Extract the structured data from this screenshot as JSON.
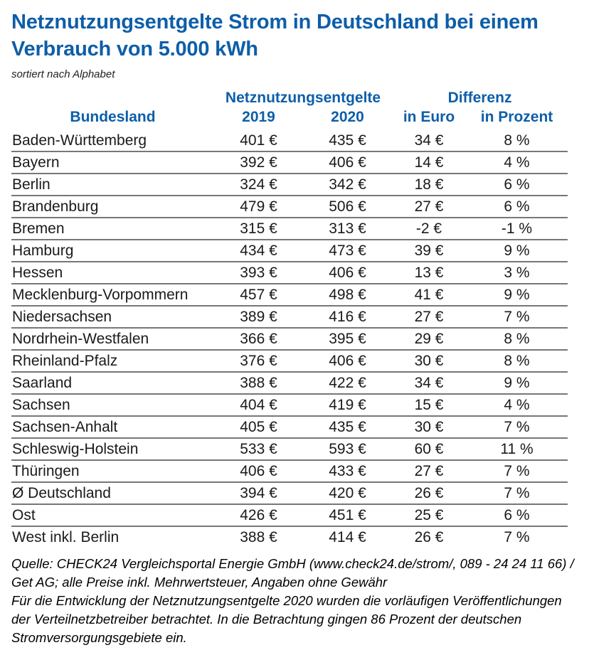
{
  "title": "Netznutzungsentgelte Strom in Deutschland bei einem Verbrauch von 5.000 kWh",
  "subtitle": "sortiert nach Alphabet",
  "accent_color": "#0d5ea9",
  "table": {
    "group_headers": {
      "fees": "Netznutzungsentgelte",
      "difference": "Differenz"
    },
    "columns": [
      "Bundesland",
      "2019",
      "2020",
      "in Euro",
      "in Prozent"
    ],
    "rows": [
      {
        "name": "Baden-Württemberg",
        "y2019": "401 €",
        "y2020": "435 €",
        "diff_euro": "34 €",
        "diff_pct": "8 %"
      },
      {
        "name": "Bayern",
        "y2019": "392 €",
        "y2020": "406 €",
        "diff_euro": "14 €",
        "diff_pct": "4 %"
      },
      {
        "name": "Berlin",
        "y2019": "324 €",
        "y2020": "342 €",
        "diff_euro": "18 €",
        "diff_pct": "6 %"
      },
      {
        "name": "Brandenburg",
        "y2019": "479 €",
        "y2020": "506 €",
        "diff_euro": "27 €",
        "diff_pct": "6 %"
      },
      {
        "name": "Bremen",
        "y2019": "315 €",
        "y2020": "313 €",
        "diff_euro": "-2 €",
        "diff_pct": "-1 %"
      },
      {
        "name": "Hamburg",
        "y2019": "434 €",
        "y2020": "473 €",
        "diff_euro": "39 €",
        "diff_pct": "9 %"
      },
      {
        "name": "Hessen",
        "y2019": "393 €",
        "y2020": "406 €",
        "diff_euro": "13 €",
        "diff_pct": "3 %"
      },
      {
        "name": "Mecklenburg-Vorpommern",
        "y2019": "457 €",
        "y2020": "498 €",
        "diff_euro": "41 €",
        "diff_pct": "9 %"
      },
      {
        "name": "Niedersachsen",
        "y2019": "389 €",
        "y2020": "416 €",
        "diff_euro": "27 €",
        "diff_pct": "7 %"
      },
      {
        "name": "Nordrhein-Westfalen",
        "y2019": "366 €",
        "y2020": "395 €",
        "diff_euro": "29 €",
        "diff_pct": "8 %"
      },
      {
        "name": "Rheinland-Pfalz",
        "y2019": "376 €",
        "y2020": "406 €",
        "diff_euro": "30 €",
        "diff_pct": "8 %"
      },
      {
        "name": "Saarland",
        "y2019": "388 €",
        "y2020": "422 €",
        "diff_euro": "34 €",
        "diff_pct": "9 %"
      },
      {
        "name": "Sachsen",
        "y2019": "404 €",
        "y2020": "419 €",
        "diff_euro": "15 €",
        "diff_pct": "4 %"
      },
      {
        "name": "Sachsen-Anhalt",
        "y2019": "405 €",
        "y2020": "435 €",
        "diff_euro": "30 €",
        "diff_pct": "7 %"
      },
      {
        "name": "Schleswig-Holstein",
        "y2019": "533 €",
        "y2020": "593 €",
        "diff_euro": "60 €",
        "diff_pct": "11 %"
      },
      {
        "name": "Thüringen",
        "y2019": "406 €",
        "y2020": "433 €",
        "diff_euro": "27 €",
        "diff_pct": "7 %"
      },
      {
        "name": "Ø Deutschland",
        "y2019": "394 €",
        "y2020": "420 €",
        "diff_euro": "26 €",
        "diff_pct": "7 %"
      },
      {
        "name": "Ost",
        "y2019": "426 €",
        "y2020": "451 €",
        "diff_euro": "25 €",
        "diff_pct": "6 %"
      },
      {
        "name": "West inkl. Berlin",
        "y2019": "388 €",
        "y2020": "414 €",
        "diff_euro": "26 €",
        "diff_pct": "7 %"
      }
    ]
  },
  "footer": {
    "source": "Quelle: CHECK24 Vergleichsportal Energie GmbH (www.check24.de/strom/, 089 - 24 24 11 66) / Get AG; alle Preise inkl. Mehrwertsteuer, Angaben ohne Gewähr",
    "note": "Für die Entwicklung der Netznutzungsentgelte 2020 wurden die vorläufigen Veröffentlichungen der Verteilnetzbetreiber betrachtet. In die Betrachtung gingen 86 Prozent der deutschen Stromversorgungsgebiete ein."
  },
  "chart_data": {
    "type": "table",
    "title": "Netznutzungsentgelte Strom in Deutschland bei einem Verbrauch von 5.000 kWh",
    "subtitle": "sortiert nach Alphabet",
    "columns": [
      "Bundesland",
      "Netznutzungsentgelte 2019 (Euro)",
      "Netznutzungsentgelte 2020 (Euro)",
      "Differenz in Euro",
      "Differenz in Prozent"
    ],
    "rows": [
      [
        "Baden-Württemberg",
        401,
        435,
        34,
        8
      ],
      [
        "Bayern",
        392,
        406,
        14,
        4
      ],
      [
        "Berlin",
        324,
        342,
        18,
        6
      ],
      [
        "Brandenburg",
        479,
        506,
        27,
        6
      ],
      [
        "Bremen",
        315,
        313,
        -2,
        -1
      ],
      [
        "Hamburg",
        434,
        473,
        39,
        9
      ],
      [
        "Hessen",
        393,
        406,
        13,
        3
      ],
      [
        "Mecklenburg-Vorpommern",
        457,
        498,
        41,
        9
      ],
      [
        "Niedersachsen",
        389,
        416,
        27,
        7
      ],
      [
        "Nordrhein-Westfalen",
        366,
        395,
        29,
        8
      ],
      [
        "Rheinland-Pfalz",
        376,
        406,
        30,
        8
      ],
      [
        "Saarland",
        388,
        422,
        34,
        9
      ],
      [
        "Sachsen",
        404,
        419,
        15,
        4
      ],
      [
        "Sachsen-Anhalt",
        405,
        435,
        30,
        7
      ],
      [
        "Schleswig-Holstein",
        533,
        593,
        60,
        11
      ],
      [
        "Thüringen",
        406,
        433,
        27,
        7
      ],
      [
        "Ø Deutschland",
        394,
        420,
        26,
        7
      ],
      [
        "Ost",
        426,
        451,
        25,
        6
      ],
      [
        "West inkl. Berlin",
        388,
        414,
        26,
        7
      ]
    ]
  }
}
